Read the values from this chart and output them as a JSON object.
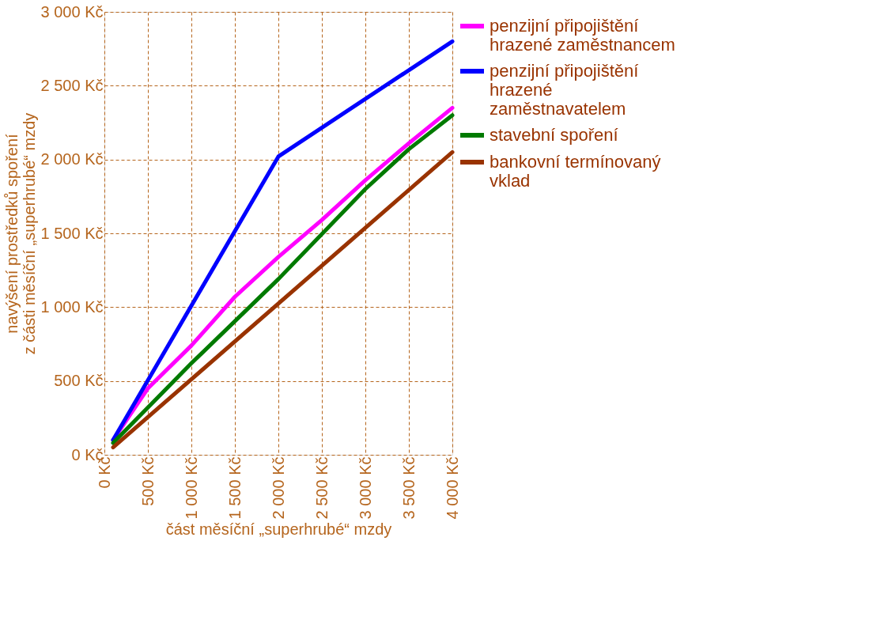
{
  "chart_data": {
    "type": "line",
    "xlabel": "část měsíční „superhrubé“ mzdy",
    "ylabel": "navýšení prostředků spoření\nz části měsíční „superhrubé“ mzdy",
    "xlim": [
      0,
      4000
    ],
    "ylim": [
      0,
      3000
    ],
    "xticks": [
      {
        "value": 0,
        "label": "0 Kč"
      },
      {
        "value": 500,
        "label": "500 Kč"
      },
      {
        "value": 1000,
        "label": "1 000 Kč"
      },
      {
        "value": 1500,
        "label": "1 500 Kč"
      },
      {
        "value": 2000,
        "label": "2 000 Kč"
      },
      {
        "value": 2500,
        "label": "2 500 Kč"
      },
      {
        "value": 3000,
        "label": "3 000 Kč"
      },
      {
        "value": 3500,
        "label": "3 500 Kč"
      },
      {
        "value": 4000,
        "label": "4 000 Kč"
      }
    ],
    "yticks": [
      {
        "value": 0,
        "label": "0 Kč"
      },
      {
        "value": 500,
        "label": "500 Kč"
      },
      {
        "value": 1000,
        "label": "1 000 Kč"
      },
      {
        "value": 1500,
        "label": "1 500 Kč"
      },
      {
        "value": 2000,
        "label": "2 000 Kč"
      },
      {
        "value": 2500,
        "label": "2 500 Kč"
      },
      {
        "value": 3000,
        "label": "3 000 Kč"
      }
    ],
    "grid": true,
    "legend": "right",
    "marker": "none",
    "line_style": "solid",
    "series": [
      {
        "name": "penzijní připojištění hrazené zaměstnancem",
        "color": "#ff00ff",
        "x": [
          100,
          500,
          1000,
          1500,
          2000,
          2500,
          3000,
          3500,
          4000
        ],
        "values": [
          100,
          450,
          740,
          1070,
          1340,
          1590,
          1860,
          2110,
          2350
        ]
      },
      {
        "name": "penzijní připojištění hrazené zaměstnavatelem",
        "color": "#0000ff",
        "x": [
          100,
          2000,
          4000
        ],
        "values": [
          100,
          2020,
          2800
        ]
      },
      {
        "name": "stavební spoření",
        "color": "#007a00",
        "x": [
          100,
          1000,
          2000,
          3000,
          3500,
          4000
        ],
        "values": [
          80,
          620,
          1190,
          1800,
          2070,
          2300
        ]
      },
      {
        "name": "bankovní termínovaný vklad",
        "color": "#993300",
        "x": [
          100,
          4000
        ],
        "values": [
          50,
          2050
        ]
      }
    ]
  }
}
